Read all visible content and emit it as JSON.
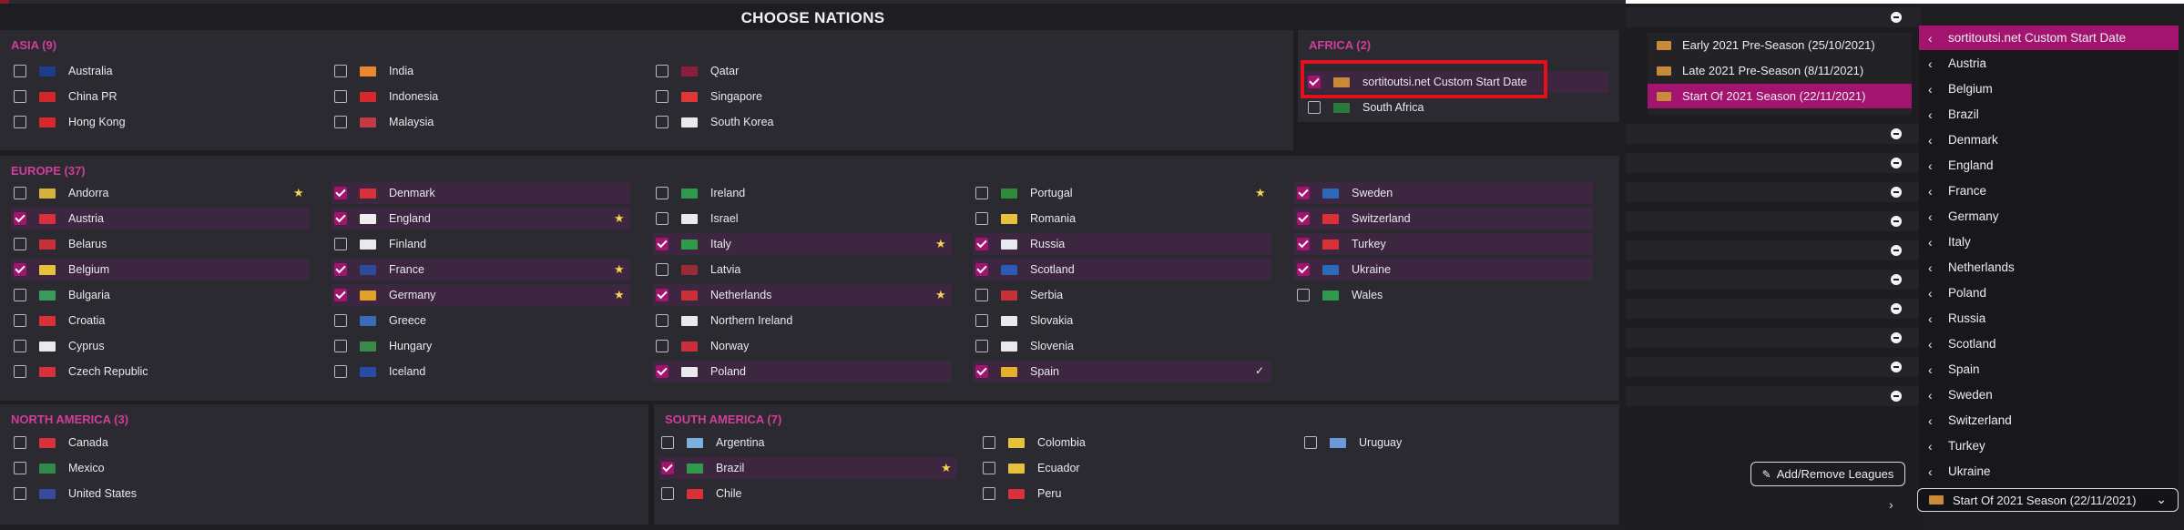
{
  "title": "CHOOSE NATIONS",
  "regions": [
    {
      "id": "asia",
      "title": "ASIA (9)",
      "items": [
        {
          "name": "Australia",
          "checked": false,
          "flag": "#1f3b8c"
        },
        {
          "name": "China PR",
          "checked": false,
          "flag": "#d2262a"
        },
        {
          "name": "Hong Kong",
          "checked": false,
          "flag": "#d8282e"
        },
        {
          "name": "India",
          "checked": false,
          "flag": "#e98a2c"
        },
        {
          "name": "Indonesia",
          "checked": false,
          "flag": "#d8282e"
        },
        {
          "name": "Malaysia",
          "checked": false,
          "flag": "#c33a45"
        },
        {
          "name": "Qatar",
          "checked": false,
          "flag": "#8a1f3d"
        },
        {
          "name": "Singapore",
          "checked": false,
          "flag": "#e03636"
        },
        {
          "name": "South Korea",
          "checked": false,
          "flag": "#e9e9ee"
        }
      ]
    },
    {
      "id": "africa",
      "title": "AFRICA (2)",
      "items": [
        {
          "name": "sortitoutsi.net Custom Start Date",
          "checked": true,
          "flag": "#c98a3a"
        },
        {
          "name": "South Africa",
          "checked": false,
          "flag": "#2a7a3d"
        }
      ]
    },
    {
      "id": "europe",
      "title": "EUROPE (37)",
      "items": [
        {
          "name": "Andorra",
          "checked": false,
          "flag": "#d5b23b",
          "star": true
        },
        {
          "name": "Austria",
          "checked": true,
          "flag": "#d9303a"
        },
        {
          "name": "Belarus",
          "checked": false,
          "flag": "#c9303a"
        },
        {
          "name": "Belgium",
          "checked": true,
          "flag": "#e6c23a"
        },
        {
          "name": "Bulgaria",
          "checked": false,
          "flag": "#3b9a5a"
        },
        {
          "name": "Croatia",
          "checked": false,
          "flag": "#d9303a"
        },
        {
          "name": "Cyprus",
          "checked": false,
          "flag": "#e9e9ee"
        },
        {
          "name": "Czech Republic",
          "checked": false,
          "flag": "#d9303a"
        },
        {
          "name": "Denmark",
          "checked": true,
          "flag": "#d9303a"
        },
        {
          "name": "England",
          "checked": true,
          "flag": "#eeeeee",
          "star": true
        },
        {
          "name": "Finland",
          "checked": false,
          "flag": "#e9e9ee"
        },
        {
          "name": "France",
          "checked": true,
          "flag": "#2a4a9a",
          "star": true
        },
        {
          "name": "Germany",
          "checked": true,
          "flag": "#e1a12a",
          "star": true
        },
        {
          "name": "Greece",
          "checked": false,
          "flag": "#3a6ab8"
        },
        {
          "name": "Hungary",
          "checked": false,
          "flag": "#3a8a4a"
        },
        {
          "name": "Iceland",
          "checked": false,
          "flag": "#2a4aa8"
        },
        {
          "name": "Ireland",
          "checked": false,
          "flag": "#2f9a4a"
        },
        {
          "name": "Israel",
          "checked": false,
          "flag": "#e9e9ee"
        },
        {
          "name": "Italy",
          "checked": true,
          "flag": "#2f9a4a",
          "star": true
        },
        {
          "name": "Latvia",
          "checked": false,
          "flag": "#9a2a38"
        },
        {
          "name": "Netherlands",
          "checked": true,
          "flag": "#c9303a",
          "star": true
        },
        {
          "name": "Northern Ireland",
          "checked": false,
          "flag": "#e9e9ee"
        },
        {
          "name": "Norway",
          "checked": false,
          "flag": "#c9303a"
        },
        {
          "name": "Poland",
          "checked": true,
          "flag": "#e9e9ee"
        },
        {
          "name": "Portugal",
          "checked": false,
          "flag": "#2f8a3a",
          "star": true
        },
        {
          "name": "Romania",
          "checked": false,
          "flag": "#e6c23a"
        },
        {
          "name": "Russia",
          "checked": true,
          "flag": "#e9e9ee"
        },
        {
          "name": "Scotland",
          "checked": true,
          "flag": "#2a5ab8"
        },
        {
          "name": "Serbia",
          "checked": false,
          "flag": "#c9303a"
        },
        {
          "name": "Slovakia",
          "checked": false,
          "flag": "#e9e9ee"
        },
        {
          "name": "Slovenia",
          "checked": false,
          "flag": "#e9e9ee"
        },
        {
          "name": "Spain",
          "checked": true,
          "flag": "#e6b02a",
          "tick": true
        },
        {
          "name": "Sweden",
          "checked": true,
          "flag": "#2a6ab8"
        },
        {
          "name": "Switzerland",
          "checked": true,
          "flag": "#d9303a"
        },
        {
          "name": "Turkey",
          "checked": true,
          "flag": "#d9303a"
        },
        {
          "name": "Ukraine",
          "checked": true,
          "flag": "#2a6ab8"
        },
        {
          "name": "Wales",
          "checked": false,
          "flag": "#2f9a4a"
        }
      ]
    },
    {
      "id": "north_america",
      "title": "NORTH AMERICA (3)",
      "items": [
        {
          "name": "Canada",
          "checked": false,
          "flag": "#d9303a"
        },
        {
          "name": "Mexico",
          "checked": false,
          "flag": "#2f8a4a"
        },
        {
          "name": "United States",
          "checked": false,
          "flag": "#3a4a9a"
        }
      ]
    },
    {
      "id": "south_america",
      "title": "SOUTH AMERICA (7)",
      "items": [
        {
          "name": "Argentina",
          "checked": false,
          "flag": "#7ab0e0"
        },
        {
          "name": "Brazil",
          "checked": true,
          "flag": "#2f9a4a",
          "star": true
        },
        {
          "name": "Chile",
          "checked": false,
          "flag": "#d9303a"
        },
        {
          "name": "Colombia",
          "checked": false,
          "flag": "#e6c23a"
        },
        {
          "name": "Ecuador",
          "checked": false,
          "flag": "#e6c23a"
        },
        {
          "name": "Peru",
          "checked": false,
          "flag": "#d9303a"
        },
        {
          "name": "Uruguay",
          "checked": false,
          "flag": "#6a9ad8"
        }
      ]
    }
  ],
  "start_options": [
    {
      "label": "Early 2021 Pre-Season (25/10/2021)",
      "active": false
    },
    {
      "label": "Late 2021 Pre-Season (8/11/2021)",
      "active": false
    },
    {
      "label": "Start Of 2021 Season (22/11/2021)",
      "active": true
    }
  ],
  "add_remove_label": "Add/Remove Leagues",
  "dropdown_items": [
    {
      "label": "sortitoutsi.net Custom Start Date",
      "active": true
    },
    {
      "label": "Austria"
    },
    {
      "label": "Belgium"
    },
    {
      "label": "Brazil"
    },
    {
      "label": "Denmark"
    },
    {
      "label": "England"
    },
    {
      "label": "France"
    },
    {
      "label": "Germany"
    },
    {
      "label": "Italy"
    },
    {
      "label": "Netherlands"
    },
    {
      "label": "Poland"
    },
    {
      "label": "Russia"
    },
    {
      "label": "Scotland"
    },
    {
      "label": "Spain"
    },
    {
      "label": "Sweden"
    },
    {
      "label": "Switzerland"
    },
    {
      "label": "Turkey"
    },
    {
      "label": "Ukraine"
    }
  ],
  "selected_start_date": "Start Of 2021 Season (22/11/2021)",
  "colors": {
    "accent": "#a3146e",
    "region_title": "#d23d9a",
    "highlight": "#e3101c"
  }
}
